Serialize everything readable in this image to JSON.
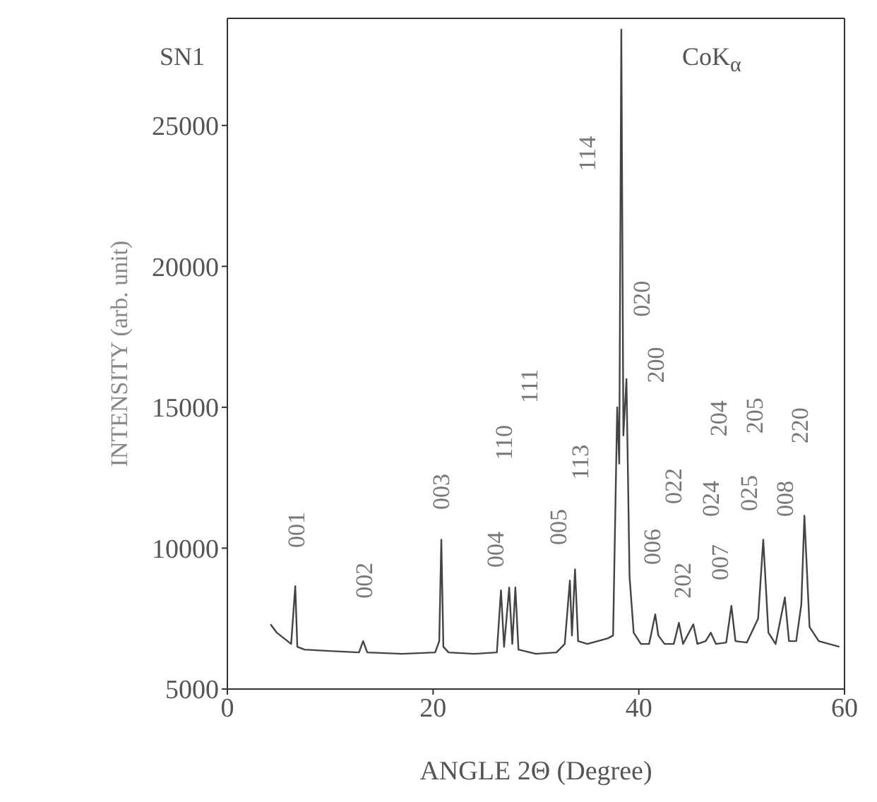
{
  "chart_data": {
    "type": "line",
    "xlabel": "ANGLE 2Θ (Degree)",
    "ylabel": "INTENSITY (arb. unit)",
    "xlim": [
      0,
      60
    ],
    "xticks": [
      0,
      20,
      40,
      60
    ],
    "ylim": [
      5000,
      28800
    ],
    "yticks": [
      5000,
      10000,
      15000,
      20000,
      25000
    ],
    "grid": false,
    "legend": false,
    "marker": "none",
    "line_style": "solid",
    "series": [
      {
        "color": "#444444",
        "x": [
          4.2,
          4.8,
          5.5,
          6.2,
          6.6,
          6.8,
          7.5,
          10,
          12.8,
          13.2,
          13.6,
          17,
          20.2,
          20.6,
          20.8,
          21.0,
          21.5,
          24,
          26.2,
          26.6,
          26.9,
          27.4,
          27.7,
          28.0,
          28.3,
          30,
          32,
          32.8,
          33.3,
          33.5,
          33.8,
          34.1,
          35,
          36,
          37.0,
          37.5,
          37.9,
          38.1,
          38.3,
          38.5,
          38.8,
          39.1,
          39.5,
          40.2,
          41,
          41.6,
          41.9,
          42.5,
          43.4,
          43.9,
          44.3,
          45.3,
          45.7,
          46.5,
          47.0,
          47.5,
          48.5,
          49.0,
          49.4,
          50.5,
          51.6,
          52.1,
          52.6,
          53.3,
          54.2,
          54.6,
          55.3,
          55.8,
          56.1,
          56.6,
          57.5,
          58.5,
          59.5
        ],
        "values": [
          7300,
          7000,
          6800,
          6600,
          8650,
          6500,
          6400,
          6350,
          6300,
          6700,
          6300,
          6250,
          6300,
          6700,
          10300,
          6500,
          6300,
          6250,
          6300,
          8500,
          6500,
          8600,
          6600,
          8600,
          6400,
          6250,
          6300,
          6600,
          8850,
          6900,
          9250,
          6700,
          6600,
          6700,
          6800,
          6900,
          15000,
          13000,
          28400,
          14000,
          16000,
          9000,
          7000,
          6600,
          6600,
          7650,
          6900,
          6600,
          6600,
          7350,
          6600,
          7300,
          6600,
          6700,
          7000,
          6600,
          6650,
          7950,
          6700,
          6650,
          7500,
          10300,
          7000,
          6600,
          8250,
          6700,
          6700,
          8000,
          11150,
          7200,
          6700,
          6600,
          6500
        ]
      }
    ],
    "annotations": [
      "SN1",
      "CoK$_{α}$",
      "001",
      "002",
      "003",
      "004",
      "110",
      "111",
      "005",
      "113",
      "114",
      "020",
      "200",
      "006",
      "022",
      "202",
      "024",
      "007",
      "204",
      "025",
      "205",
      "008",
      "220"
    ]
  }
}
